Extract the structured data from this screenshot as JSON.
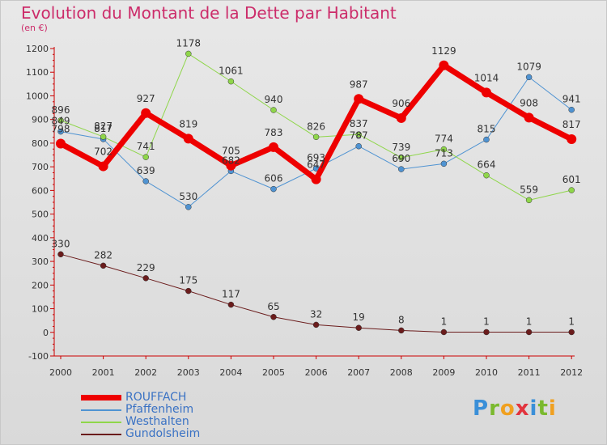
{
  "title": "Evolution du Montant de la Dette par Habitant",
  "subtitle": "(en €)",
  "logo": "Proxiti",
  "colors": {
    "background": "#dedede",
    "title": "#cc2c6a",
    "legend_text": "#3a72c4",
    "logo_letters": [
      "#3a8fd8",
      "#7ab92e",
      "#f0a020",
      "#e2343e",
      "#3a8fd8",
      "#7ab92e",
      "#f0a020"
    ]
  },
  "chart_data": {
    "type": "line",
    "title": "Evolution du Montant de la Dette par Habitant",
    "subtitle": "(en €)",
    "xlabel": "",
    "ylabel": "",
    "x": [
      "2000",
      "2001",
      "2002",
      "2003",
      "2004",
      "2005",
      "2006",
      "2007",
      "2008",
      "2009",
      "2010",
      "2011",
      "2012"
    ],
    "ylim": [
      -100,
      1200
    ],
    "yticks": [
      -100,
      0,
      100,
      200,
      300,
      400,
      500,
      600,
      700,
      800,
      900,
      1000,
      1100,
      1200
    ],
    "grid": false,
    "legend_position": "bottom-left",
    "series": [
      {
        "name": "ROUFFACH",
        "color": "#ee0000",
        "width": 7,
        "marker_size": 6,
        "values": [
          798,
          702,
          927,
          819,
          705,
          783,
          647,
          987,
          906,
          1129,
          1014,
          908,
          817
        ]
      },
      {
        "name": "Pfaffenheim",
        "color": "#4f93d2",
        "width": 1,
        "marker_size": 3.5,
        "values": [
          849,
          817,
          639,
          530,
          682,
          606,
          693,
          787,
          690,
          713,
          815,
          1079,
          941
        ]
      },
      {
        "name": "Westhalten",
        "color": "#8fd64a",
        "width": 1,
        "marker_size": 3.5,
        "values": [
          896,
          827,
          741,
          1178,
          1061,
          940,
          826,
          837,
          739,
          774,
          664,
          559,
          601
        ]
      },
      {
        "name": "Gundolsheim",
        "color": "#6b1c1c",
        "width": 1,
        "marker_size": 3.5,
        "values": [
          330,
          282,
          229,
          175,
          117,
          65,
          32,
          19,
          8,
          1,
          1,
          1,
          1
        ]
      }
    ],
    "data_labels": [
      {
        "series": "ROUFFACH",
        "labels": [
          "798",
          "702",
          "927",
          "819",
          "705",
          "783",
          "647",
          "987",
          "906",
          "1129",
          "1014",
          "908",
          "817"
        ]
      },
      {
        "series": "Pfaffenheim",
        "labels": [
          "849",
          "817",
          "639",
          "530",
          "682",
          "606",
          "693",
          "787",
          "690",
          "713",
          "815",
          "1079",
          "941"
        ]
      },
      {
        "series": "Westhalten",
        "labels": [
          "896",
          "827",
          "741",
          "1178",
          "1061",
          "940",
          "826",
          "837",
          "739",
          "774",
          "664",
          "559",
          "601"
        ]
      },
      {
        "series": "Gundolsheim",
        "labels": [
          "330",
          "282",
          "229",
          "175",
          "117",
          "65",
          "32",
          "19",
          "8",
          "1",
          "1",
          "1",
          "1"
        ]
      }
    ]
  }
}
